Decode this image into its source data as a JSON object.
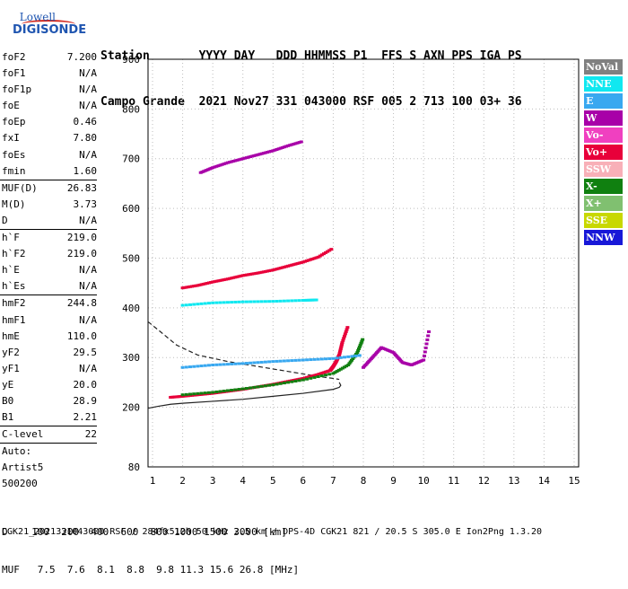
{
  "logo": {
    "top_text": "Lowell",
    "bottom_text": "DIGISONDE"
  },
  "header": {
    "row1": "Station       YYYY DAY   DDD HHMMSS P1  FFS S AXN PPS IGA PS",
    "row2": "Campo Grande  2021 Nov27 331 043000 RSF 005 2 713 100 03+ 36"
  },
  "params": [
    {
      "name": "foF2",
      "value": "7.200"
    },
    {
      "name": "foF1",
      "value": "N/A"
    },
    {
      "name": "foF1p",
      "value": "N/A"
    },
    {
      "name": "foE",
      "value": "N/A"
    },
    {
      "name": "foEp",
      "value": "0.46"
    },
    {
      "name": "fxI",
      "value": "7.80"
    },
    {
      "name": "foEs",
      "value": "N/A"
    },
    {
      "name": "fmin",
      "value": "1.60"
    },
    {
      "sep": true
    },
    {
      "name": "MUF(D)",
      "value": "26.83"
    },
    {
      "name": "M(D)",
      "value": "3.73"
    },
    {
      "name": "D",
      "value": "N/A"
    },
    {
      "sep": true
    },
    {
      "name": "h`F",
      "value": "219.0"
    },
    {
      "name": "h`F2",
      "value": "219.0"
    },
    {
      "name": "h`E",
      "value": "N/A"
    },
    {
      "name": "h`Es",
      "value": "N/A"
    },
    {
      "sep": true
    },
    {
      "name": "hmF2",
      "value": "244.8"
    },
    {
      "name": "hmF1",
      "value": "N/A"
    },
    {
      "name": "hmE",
      "value": "110.0"
    },
    {
      "name": "yF2",
      "value": "29.5"
    },
    {
      "name": "yF1",
      "value": "N/A"
    },
    {
      "name": "yE",
      "value": "20.0"
    },
    {
      "name": "B0",
      "value": "28.9"
    },
    {
      "name": "B1",
      "value": "2.21"
    },
    {
      "sep": true
    },
    {
      "name": "C-level",
      "value": "22"
    },
    {
      "sep": true
    },
    {
      "name": "Auto:",
      "value": ""
    },
    {
      "name": "Artist5",
      "value": ""
    },
    {
      "name": "500200",
      "value": ""
    }
  ],
  "legend": [
    {
      "label": "NoVal",
      "bg": "#808080",
      "fg": "#ffffff"
    },
    {
      "label": "NNE",
      "bg": "#10e8f0",
      "fg": "#ffffff"
    },
    {
      "label": "E",
      "bg": "#38a8f0",
      "fg": "#ffffff"
    },
    {
      "label": "W",
      "bg": "#a800a8",
      "fg": "#ffffff"
    },
    {
      "label": "Vo-",
      "bg": "#f040c0",
      "fg": "#ffffff"
    },
    {
      "label": "Vo+",
      "bg": "#e8003a",
      "fg": "#ffffff"
    },
    {
      "label": "SSW",
      "bg": "#f8b0b8",
      "fg": "#ffffff"
    },
    {
      "label": "X-",
      "bg": "#108010",
      "fg": "#ffffff"
    },
    {
      "label": "X+",
      "bg": "#80c070",
      "fg": "#ffffff"
    },
    {
      "label": "SSE",
      "bg": "#c8d800",
      "fg": "#ffffff"
    },
    {
      "label": "NNW",
      "bg": "#1818d8",
      "fg": "#ffffff"
    }
  ],
  "dmuf": {
    "row1": "D    100  200  400  600  800 1000 1500 3000 [km]",
    "row2": "MUF   7.5  7.6  8.1  8.8  9.8 11.3 15.6 26.8 [MHz]"
  },
  "footer": "CGK21_2021331043000.RSF / 284fx512h 50 kHz 2.5 km / DPS-4D CGK21 821 / 20.5 S 305.0 E Ion2Png 1.3.20",
  "chart_data": {
    "type": "scatter",
    "title": "",
    "xlabel": "",
    "ylabel": "",
    "xlim": [
      0.85,
      15.15
    ],
    "ylim": [
      80,
      900
    ],
    "x_ticks": [
      1,
      2,
      3,
      4,
      5,
      6,
      7,
      8,
      9,
      10,
      11,
      12,
      13,
      14,
      15
    ],
    "y_ticks": [
      80,
      200,
      300,
      400,
      500,
      600,
      700,
      800,
      900
    ],
    "grid": "dotted",
    "legend_position": "right",
    "traces": [
      {
        "name": "trace-ordinary",
        "color": "#e8003a",
        "x": [
          1.6,
          2.0,
          2.5,
          3.0,
          3.5,
          4.0,
          4.5,
          5.0,
          5.5,
          6.0,
          6.5,
          6.9,
          7.0,
          7.1,
          7.2,
          7.3,
          7.5
        ],
        "y": [
          220,
          222,
          225,
          228,
          232,
          236,
          241,
          246,
          252,
          258,
          266,
          274,
          282,
          292,
          305,
          330,
          365
        ]
      },
      {
        "name": "trace-extraordinary",
        "color": "#108010",
        "x": [
          2.0,
          3.0,
          4.0,
          5.0,
          6.0,
          7.0,
          7.5,
          7.8,
          8.0
        ],
        "y": [
          225,
          230,
          237,
          245,
          255,
          268,
          285,
          310,
          340
        ]
      },
      {
        "name": "trace-multihop",
        "color": "#e8003a",
        "x": [
          2.0,
          2.5,
          3.0,
          3.5,
          4.0,
          4.5,
          5.0,
          5.5,
          6.0,
          6.5,
          7.0
        ],
        "y": [
          440,
          445,
          452,
          458,
          465,
          470,
          476,
          484,
          492,
          502,
          520
        ]
      },
      {
        "name": "trace-third-hop",
        "color": "#a800a8",
        "x": [
          2.6,
          3.0,
          3.5,
          4.0,
          4.5,
          5.0,
          5.5,
          6.0
        ],
        "y": [
          672,
          682,
          692,
          700,
          708,
          716,
          726,
          735
        ]
      },
      {
        "name": "spread-e-echo",
        "color": "#38a8f0",
        "x": [
          2.0,
          3.0,
          4.0,
          5.0,
          6.0,
          7.0,
          8.0
        ],
        "y": [
          280,
          285,
          288,
          292,
          295,
          298,
          305
        ]
      },
      {
        "name": "spread-high-freq",
        "color": "#a800a8",
        "x": [
          8.0,
          8.3,
          8.6,
          9.0,
          9.3,
          9.6,
          10.0,
          10.2
        ],
        "y": [
          280,
          300,
          320,
          310,
          290,
          285,
          295,
          360
        ]
      },
      {
        "name": "nne-band",
        "color": "#10e8f0",
        "x": [
          2.0,
          3.0,
          4.0,
          5.0,
          6.0,
          6.5
        ],
        "y": [
          405,
          410,
          412,
          413,
          415,
          416
        ]
      }
    ],
    "profile_solid": {
      "x": [
        0.85,
        1.2,
        1.6,
        2.0,
        3.0,
        4.0,
        5.0,
        6.0,
        7.0,
        7.2,
        7.25,
        7.2
      ],
      "y": [
        198,
        202,
        206,
        208,
        212,
        216,
        222,
        228,
        236,
        240,
        244,
        250
      ]
    },
    "profile_dashed": {
      "x": [
        0.85,
        1.3,
        1.8,
        2.5,
        3.5,
        4.5,
        5.5,
        6.5,
        7.0,
        7.2
      ],
      "y": [
        372,
        350,
        325,
        305,
        292,
        282,
        272,
        262,
        258,
        256
      ]
    }
  }
}
